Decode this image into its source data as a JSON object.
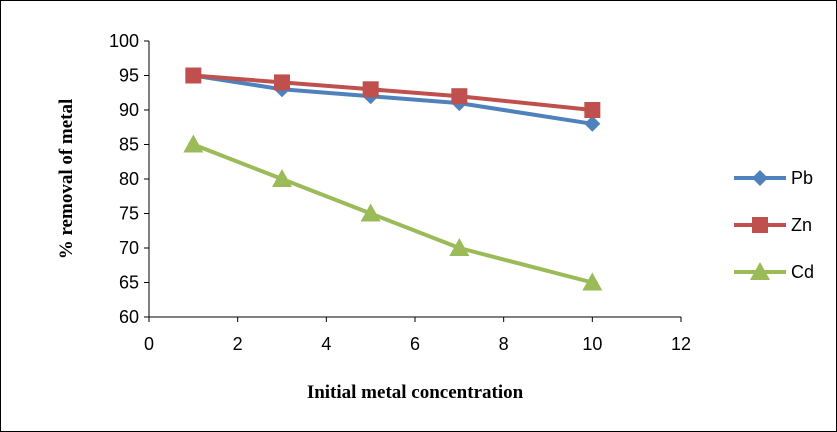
{
  "chart_data": {
    "type": "line",
    "title": "",
    "xlabel": "Initial metal concentration",
    "ylabel": "% removal of metal",
    "xlim": [
      0,
      12
    ],
    "ylim": [
      60,
      100
    ],
    "x_ticks": [
      0,
      2,
      4,
      6,
      8,
      10,
      12
    ],
    "y_ticks": [
      60,
      65,
      70,
      75,
      80,
      85,
      90,
      95,
      100
    ],
    "grid": false,
    "legend_position": "right",
    "x": [
      1,
      3,
      5,
      7,
      10
    ],
    "series": [
      {
        "name": "Pb",
        "values": [
          95,
          93,
          92,
          91,
          88
        ],
        "color": "#4F81BD",
        "marker": "diamond"
      },
      {
        "name": "Zn",
        "values": [
          95,
          94,
          93,
          92,
          90
        ],
        "color": "#C0504D",
        "marker": "square"
      },
      {
        "name": "Cd",
        "values": [
          85,
          80,
          75,
          70,
          65
        ],
        "color": "#9BBB59",
        "marker": "triangle"
      }
    ]
  }
}
